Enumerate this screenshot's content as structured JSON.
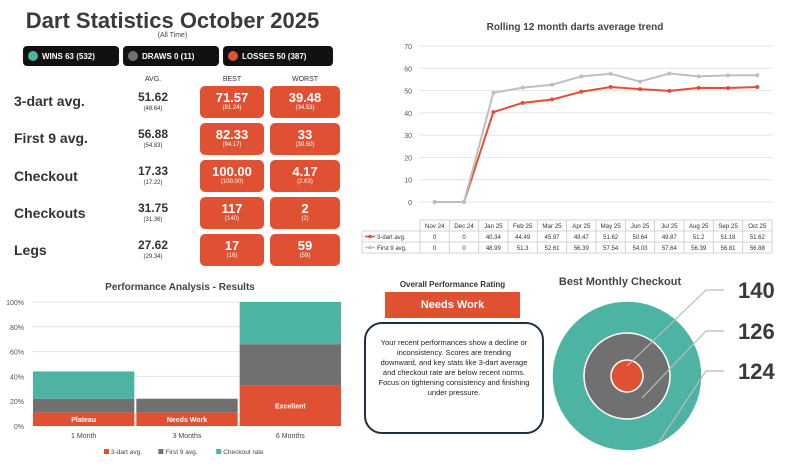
{
  "header": {
    "title": "Dart Statistics October 2025",
    "subtitle": "(All Time)"
  },
  "badges": [
    {
      "label": "WINS 63 (532)",
      "color": "#4db3a2"
    },
    {
      "label": "DRAWS 0 (11)",
      "color": "#707070"
    },
    {
      "label": "LOSSES 50 (387)",
      "color": "#e05133"
    }
  ],
  "stats_table": {
    "col_avg": "AVG.",
    "col_best": "BEST",
    "col_worst": "WORST",
    "rows": [
      {
        "label": "3-dart avg.",
        "avg": "51.62",
        "avg_sub": "(48.64)",
        "best": "71.57",
        "best_sub": "(81.24)",
        "worst": "39.48",
        "worst_sub": "(34.53)"
      },
      {
        "label": "First 9 avg.",
        "avg": "56.88",
        "avg_sub": "(54.83)",
        "best": "82.33",
        "best_sub": "(94.17)",
        "worst": "33",
        "worst_sub": "(30.50)"
      },
      {
        "label": "Checkout",
        "avg": "17.33",
        "avg_sub": "(17.22)",
        "best": "100.00",
        "best_sub": "(100.00)",
        "worst": "4.17",
        "worst_sub": "(2.63)"
      },
      {
        "label": "Checkouts",
        "avg": "31.75",
        "avg_sub": "(31.36)",
        "best": "117",
        "best_sub": "(140)",
        "worst": "2",
        "worst_sub": "(2)"
      },
      {
        "label": "Legs",
        "avg": "27.62",
        "avg_sub": "(29.34)",
        "best": "17",
        "best_sub": "(16)",
        "worst": "59",
        "worst_sub": "(59)"
      }
    ]
  },
  "rating": {
    "label": "Overall Performance Rating",
    "value": "Needs Work",
    "description": "Your recent performances show a decline or inconsistency. Scores are trending downward, and key stats like 3-dart average and checkout rate are below recent norms. Focus on tightening consistency and finishing under pressure."
  },
  "colors": {
    "orange": "#e05133",
    "grey": "#707070",
    "teal": "#4db3a2",
    "light_grey": "#bfbfbf"
  },
  "chart_data": [
    {
      "type": "line",
      "title": "Rolling 12 month darts average trend",
      "categories": [
        "Nov 24",
        "Dec 24",
        "Jan 25",
        "Feb 25",
        "Mar 25",
        "Apr 25",
        "May 25",
        "Jun 25",
        "Jul 25",
        "Aug 25",
        "Sep 25",
        "Oct 25"
      ],
      "ylim": [
        0,
        70
      ],
      "yticks": [
        0,
        10,
        20,
        30,
        40,
        50,
        60,
        70
      ],
      "series": [
        {
          "name": "3-dart avg.",
          "color": "#e05133",
          "values": [
            0,
            0,
            40.34,
            44.49,
            45.97,
            49.47,
            51.62,
            50.64,
            49.87,
            51.2,
            51.18,
            51.62
          ],
          "labels": [
            "0",
            "0",
            "40.34",
            "44.49",
            "45.97",
            "49.47",
            "51.62",
            "50.64",
            "49.87",
            "51.2",
            "51.18",
            "51.62"
          ]
        },
        {
          "name": "First 9 avg.",
          "color": "#bfbfbf",
          "values": [
            0,
            0,
            48.99,
            51.3,
            52.61,
            56.39,
            57.54,
            54.03,
            57.64,
            56.39,
            56.81,
            56.88
          ],
          "labels": [
            "0",
            "0",
            "48.99",
            "51.3",
            "52.61",
            "56.39",
            "57.54",
            "54.03",
            "57.64",
            "56.39",
            "56.81",
            "56.88"
          ]
        }
      ]
    },
    {
      "type": "bar",
      "stacked": true,
      "title": "Performance Analysis - Results",
      "categories": [
        "1 Month",
        "3 Months",
        "6 Months"
      ],
      "ylim": [
        0,
        100
      ],
      "yticks": [
        "0%",
        "20%",
        "40%",
        "60%",
        "80%",
        "100%"
      ],
      "series": [
        {
          "name": "3-dart avg.",
          "color": "#e05133",
          "values": [
            11,
            11,
            33
          ]
        },
        {
          "name": "First 9 avg.",
          "color": "#707070",
          "values": [
            11,
            11,
            33
          ]
        },
        {
          "name": "Checkout rate",
          "color": "#4db3a2",
          "values": [
            22,
            0,
            34
          ]
        }
      ],
      "bar_labels": [
        "Plateau",
        "Needs Work",
        "Excellent"
      ]
    },
    {
      "type": "pie",
      "title": "Best Monthly Checkout",
      "values": [
        140,
        126,
        124
      ],
      "labels": [
        "140",
        "126",
        "124"
      ]
    }
  ]
}
